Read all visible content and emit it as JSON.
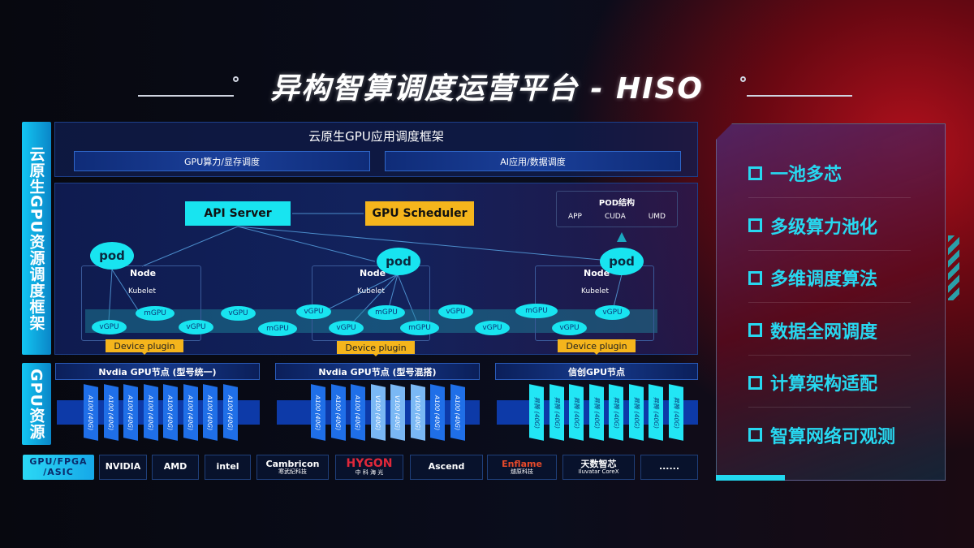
{
  "title": "异构智算调度运营平台 - HISO",
  "left_labels": {
    "framework": "云原生GPU资源调度框架",
    "resources": "GPU资源"
  },
  "top": {
    "title": "云原生GPU应用调度框架",
    "sub1": "GPU算力/显存调度",
    "sub2": "AI应用/数据调度"
  },
  "arch": {
    "api_server": "API Server",
    "gpu_scheduler": "GPU Scheduler",
    "pod_struct": {
      "title": "POD结构",
      "items": [
        "APP",
        "CUDA",
        "UMD"
      ]
    },
    "pod": "pod",
    "node": "Node",
    "kubelet": "Kubelet",
    "device_plugin": "Device plugin",
    "vgpu": "vGPU",
    "mgpu": "mGPU"
  },
  "gpu_nodes": [
    {
      "title": "Nvdia GPU节点 (型号统一)",
      "cards": [
        "A100 (40G)",
        "A100 (40G)",
        "A100 (40G)",
        "A100 (40G)",
        "A100 (40G)",
        "A100 (40G)",
        "A100 (40G)",
        "A100 (40G)"
      ]
    },
    {
      "title": "Nvdia GPU节点 (型号混搭)",
      "cards": [
        "A100 (40G)",
        "A100 (40G)",
        "A100 (40G)",
        "V100 (40G)",
        "V100 (40G)",
        "V100 (40G)",
        "A100 (40G)",
        "A100 (40G)"
      ]
    },
    {
      "title": "信创GPU节点",
      "cards": [
        "昇腾 (40G)",
        "昇腾 (40G)",
        "昇腾 (40G)",
        "昇腾 (40G)",
        "昇腾 (40G)",
        "昇腾 (40G)",
        "昇腾 (40G)",
        "昇腾 (40G)"
      ]
    }
  ],
  "vendors": {
    "label": "GPU/FPGA /ASIC",
    "items": [
      {
        "name": "NVIDIA",
        "sub": ""
      },
      {
        "name": "AMD",
        "sub": ""
      },
      {
        "name": "intel",
        "sub": ""
      },
      {
        "name": "Cambricon",
        "sub": "寒武纪科技"
      },
      {
        "name": "HYGON",
        "sub": "中 科 海 光"
      },
      {
        "name": "Ascend",
        "sub": ""
      },
      {
        "name": "Enflame",
        "sub": "燧原科技"
      },
      {
        "name": "天数智芯",
        "sub": "Iluvatar CoreX"
      },
      {
        "name": "......",
        "sub": ""
      }
    ]
  },
  "features": [
    "一池多芯",
    "多级算力池化",
    "多维调度算法",
    "数据全网调度",
    "计算架构适配",
    "智算网络可观测"
  ],
  "colors": {
    "cyan": "#18e4f0",
    "orange": "#f5b51c",
    "card_blue": "#1f6fe8",
    "card_light": "#7ab8f5",
    "card_cyan": "#22e6f5",
    "feature": "#27d8f0"
  }
}
